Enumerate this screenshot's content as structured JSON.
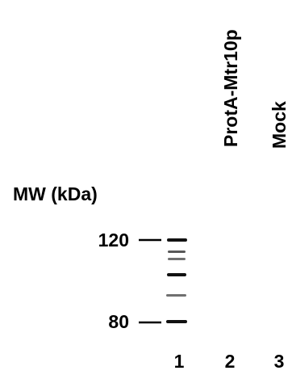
{
  "lanes": {
    "headers": [
      "ProtA-Mtr10p",
      "Mock"
    ],
    "numbers": [
      "1",
      "2",
      "3"
    ]
  },
  "axis": {
    "label": "MW (kDa)",
    "markers": [
      "120",
      "80"
    ]
  }
}
